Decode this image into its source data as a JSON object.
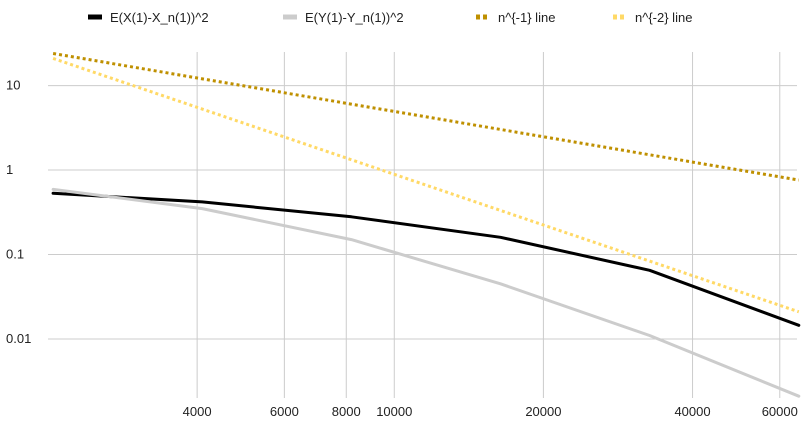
{
  "chart_data": {
    "type": "line",
    "title": "",
    "xlabel": "",
    "ylabel": "",
    "x_scale": "log",
    "y_scale": "log",
    "xlim": [
      2000,
      65000
    ],
    "ylim": [
      0.002,
      25
    ],
    "grid": true,
    "legend_position": "top",
    "x_ticks": [
      {
        "value": 4000,
        "label": "4000"
      },
      {
        "value": 6000,
        "label": "6000"
      },
      {
        "value": 8000,
        "label": "8000"
      },
      {
        "value": 10000,
        "label": "10000"
      },
      {
        "value": 20000,
        "label": "20000"
      },
      {
        "value": 40000,
        "label": "40000"
      },
      {
        "value": 60000,
        "label": "60000"
      }
    ],
    "y_ticks": [
      {
        "value": 10,
        "label": "10"
      },
      {
        "value": 1,
        "label": "1"
      },
      {
        "value": 0.1,
        "label": "0.1"
      },
      {
        "value": 0.01,
        "label": "0.01"
      }
    ],
    "series": [
      {
        "name": "E(X(1)-X_n(1))^2",
        "color": "#000000",
        "style": "solid",
        "x": [
          2048,
          4096,
          8192,
          16384,
          32768,
          65536
        ],
        "y": [
          0.53,
          0.42,
          0.28,
          0.16,
          0.065,
          0.0145
        ]
      },
      {
        "name": "E(Y(1)-Y_n(1))^2",
        "color": "#cccccc",
        "style": "solid",
        "x": [
          2048,
          4096,
          8192,
          16384,
          32768,
          65536
        ],
        "y": [
          0.59,
          0.35,
          0.15,
          0.045,
          0.011,
          0.0021
        ]
      },
      {
        "name": "n^{-1} line",
        "color": "#bf9000",
        "style": "dotted",
        "x": [
          2048,
          65536
        ],
        "y": [
          24,
          0.76
        ]
      },
      {
        "name": "n^{-2} line",
        "color": "#ffd966",
        "style": "dotted",
        "x": [
          2048,
          65536
        ],
        "y": [
          21,
          0.021
        ]
      }
    ]
  }
}
